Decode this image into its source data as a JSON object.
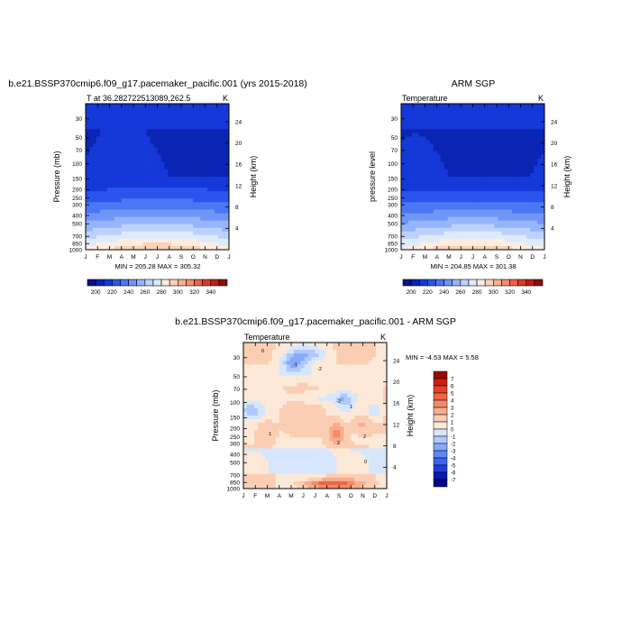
{
  "palette": {
    "temp": [
      "#08108c",
      "#0a24b4",
      "#1538d8",
      "#2a55ec",
      "#4a77f4",
      "#6e95f8",
      "#95b4fb",
      "#bcd2fd",
      "#deebfe",
      "#fdeedf",
      "#fbd1b8",
      "#f8ae8f",
      "#f58b6b",
      "#ef6146",
      "#df3a25",
      "#bf1d14",
      "#8e0c0a"
    ],
    "diff": [
      "#00008b",
      "#0a1ab0",
      "#1f3fd8",
      "#3c64ee",
      "#5f88f7",
      "#87aafb",
      "#b0c9fd",
      "#d6e6fe",
      "#fde9d8",
      "#fbceb4",
      "#f7ad8d",
      "#f28b69",
      "#ec6647",
      "#e2432a",
      "#c92114",
      "#9c0a07"
    ]
  },
  "chart_data": [
    {
      "type": "contour",
      "title": "b.e21.BSSP370cmip6.f09_g17.pacemaker_pacific.001 (yrs 2015-2018)",
      "left_label": "T at 36.282722513089,262.5",
      "units": "K",
      "xlabel": "",
      "ylabel": "Pressure (mb)",
      "y2label": "Height (km)",
      "x_ticks": [
        "J",
        "F",
        "M",
        "A",
        "M",
        "J",
        "J",
        "A",
        "S",
        "O",
        "N",
        "D",
        "J"
      ],
      "y_ticks": [
        "30",
        "50",
        "70",
        "100",
        "150",
        "200",
        "250",
        "300",
        "400",
        "500",
        "700",
        "850",
        "1000"
      ],
      "y2_ticks": [
        "24",
        "20",
        "16",
        "12",
        "8",
        "4"
      ],
      "stats": "MIN = 205.28 MAX = 305.32",
      "min": 205.28,
      "max": 305.32,
      "colorbar_labels": [
        "200",
        "220",
        "240",
        "260",
        "280",
        "300",
        "320",
        "340"
      ],
      "contour_levels": [
        195,
        200,
        205,
        210,
        215,
        220,
        225,
        230,
        235,
        240,
        245,
        250,
        255,
        260,
        265,
        270,
        275,
        280,
        285,
        290,
        295,
        300,
        305,
        310,
        315,
        320,
        325,
        330,
        335,
        340,
        345
      ]
    },
    {
      "type": "contour",
      "title": "ARM SGP",
      "left_label": "Temperature",
      "units": "K",
      "xlabel": "",
      "ylabel": "pressure level",
      "y2label": "Height (km)",
      "x_ticks": [
        "J",
        "F",
        "M",
        "A",
        "M",
        "J",
        "J",
        "A",
        "S",
        "O",
        "N",
        "D",
        "J"
      ],
      "y_ticks": [
        "30",
        "50",
        "70",
        "100",
        "150",
        "200",
        "250",
        "300",
        "400",
        "500",
        "700",
        "850",
        "1000"
      ],
      "y2_ticks": [
        "24",
        "20",
        "16",
        "12",
        "8",
        "4"
      ],
      "stats": "MIN = 204.85 MAX = 301.38",
      "min": 204.85,
      "max": 301.38,
      "colorbar_labels": [
        "200",
        "220",
        "240",
        "260",
        "280",
        "300",
        "320",
        "340"
      ]
    },
    {
      "type": "contour",
      "title": "b.e21.BSSP370cmip6.f09_g17.pacemaker_pacific.001 - ARM SGP",
      "left_label": "Temperature",
      "units": "K",
      "xlabel": "",
      "ylabel": "Pressure (mb)",
      "y2label": "Height (km)",
      "x_ticks": [
        "J",
        "F",
        "M",
        "A",
        "M",
        "J",
        "J",
        "A",
        "S",
        "O",
        "N",
        "D",
        "J"
      ],
      "y_ticks": [
        "30",
        "50",
        "70",
        "100",
        "150",
        "200",
        "250",
        "300",
        "400",
        "500",
        "700",
        "850",
        "1000"
      ],
      "y2_ticks": [
        "24",
        "20",
        "16",
        "12",
        "8",
        "4"
      ],
      "stats": "MIN =  -4.53 MAX =   5.58",
      "min": -4.53,
      "max": 5.58,
      "colorbar_labels": [
        "7",
        "6",
        "5",
        "4",
        "3",
        "2",
        "1",
        "0",
        "-1",
        "-2",
        "-3",
        "-4",
        "-5",
        "-6",
        "-7"
      ],
      "contour_labels": [
        "0",
        "-1",
        "-2",
        "1",
        "-2",
        "2",
        "2",
        "0",
        "1"
      ]
    }
  ]
}
